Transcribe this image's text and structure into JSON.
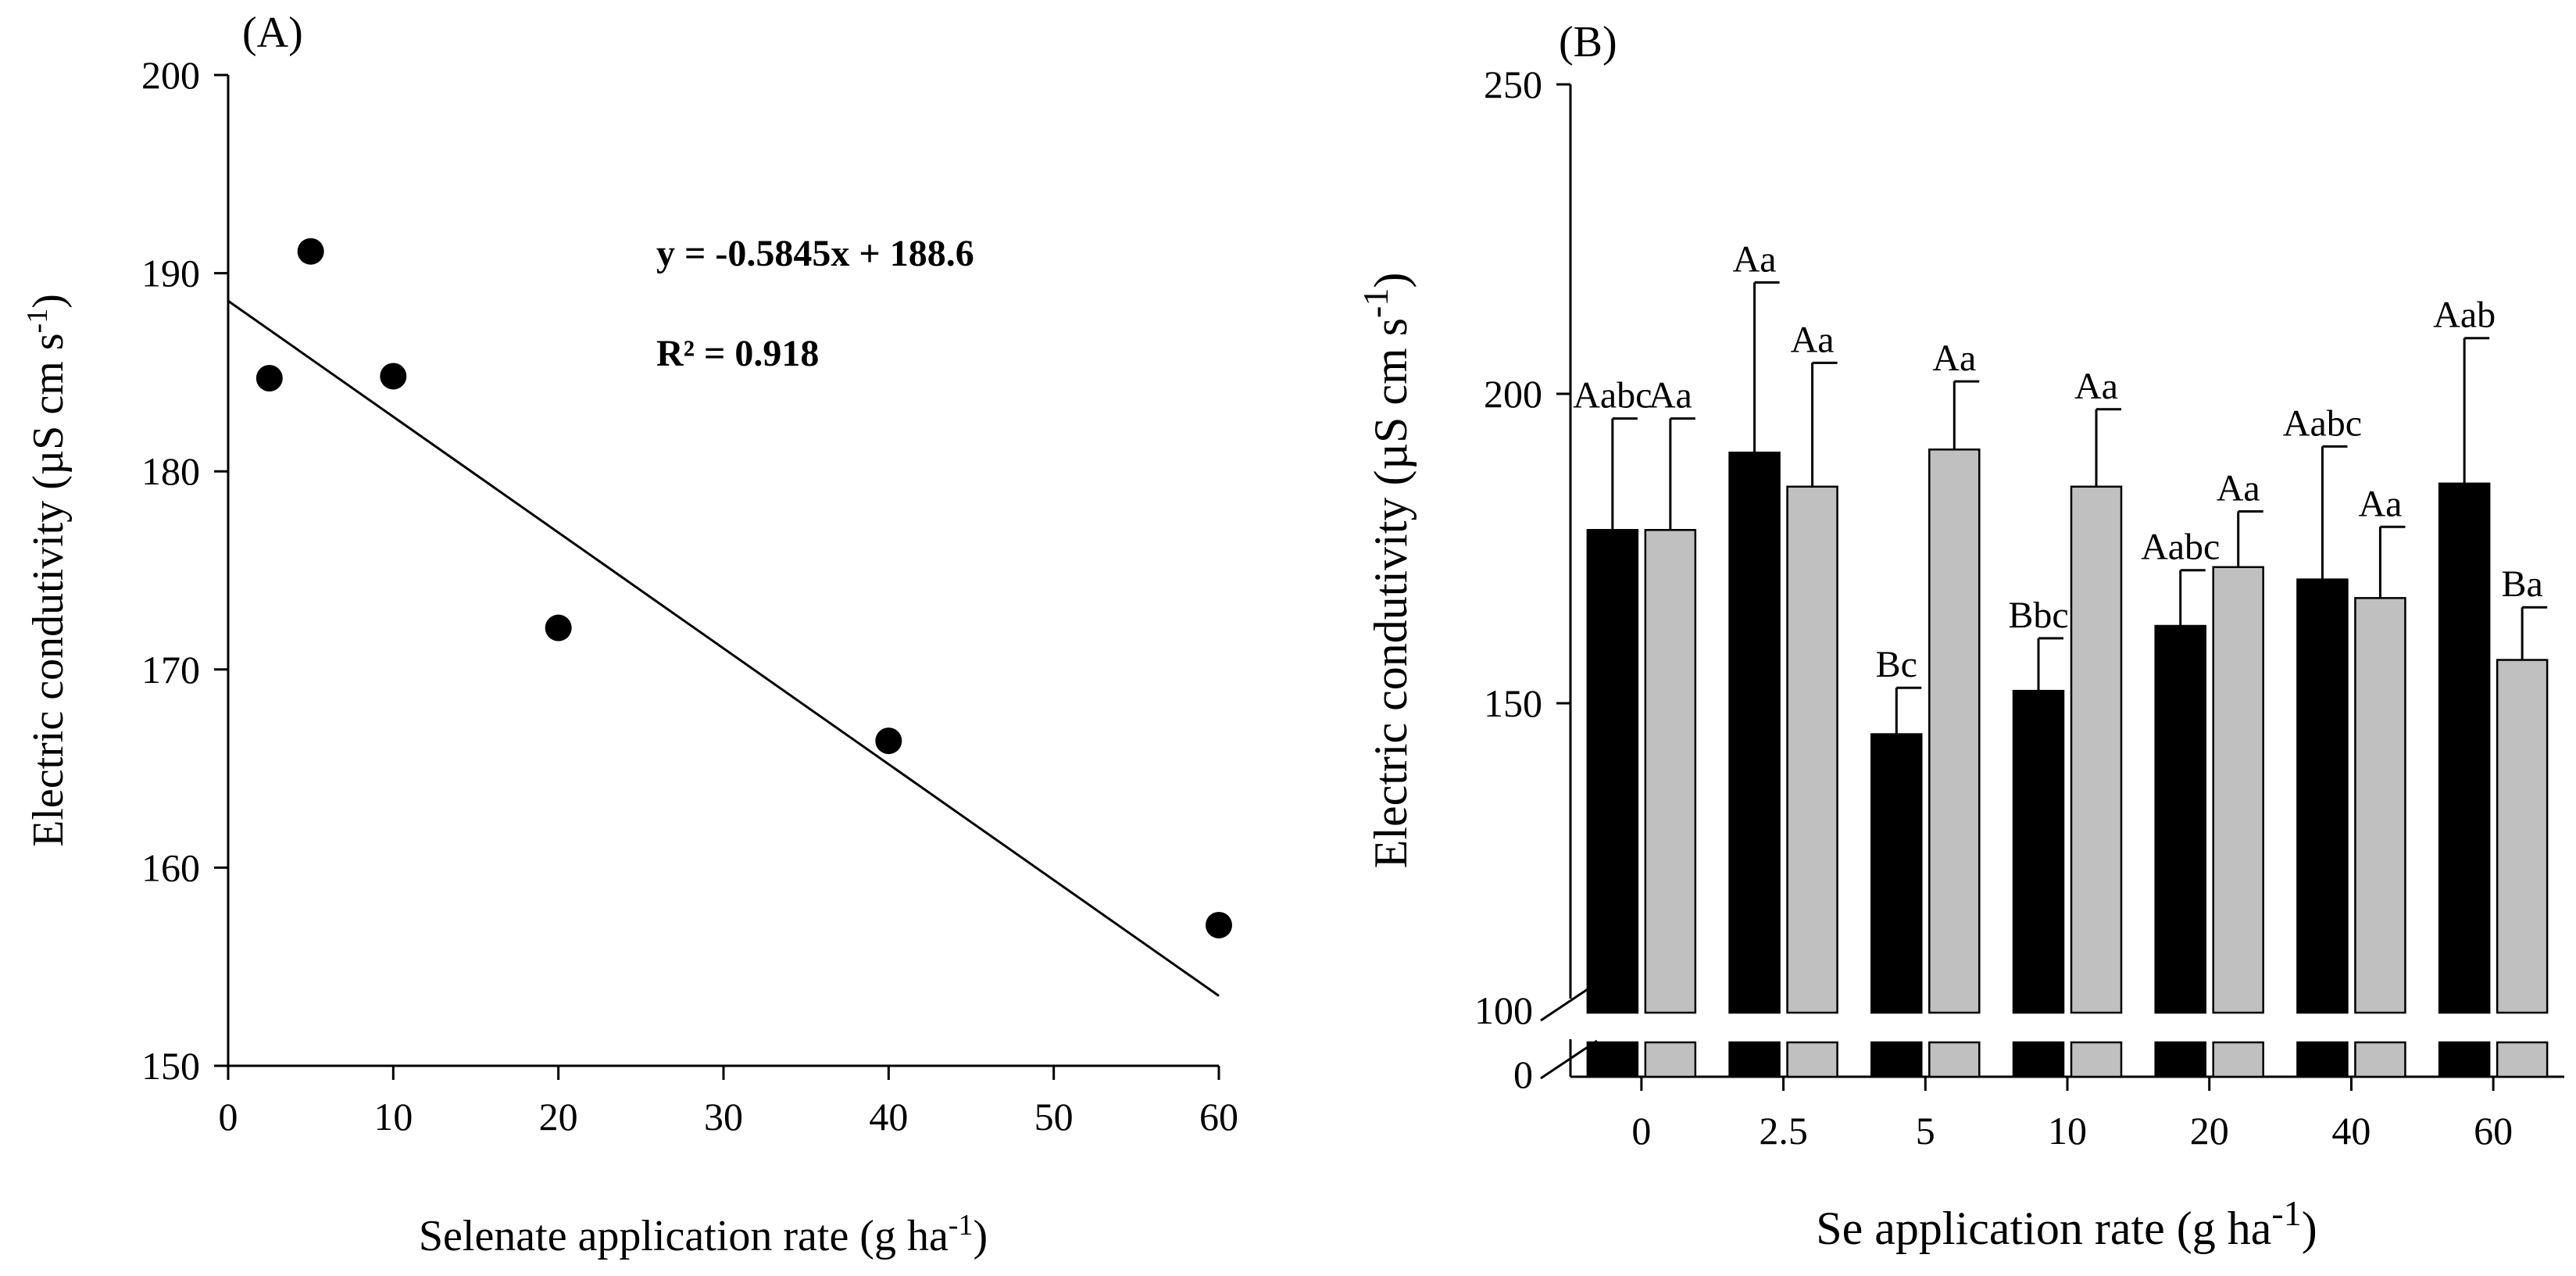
{
  "chart_data": [
    {
      "panel_label": "(A)",
      "type": "scatter",
      "title": "",
      "xlabel": "Selenate application rate (g ha",
      "xlabel_sup": "-1",
      "xlabel_tail": ")",
      "ylabel": "Electric condutivity (µS cm s",
      "ylabel_sup": "-1",
      "ylabel_tail": ")",
      "xlim": [
        0,
        60
      ],
      "ylim": [
        150,
        200
      ],
      "x_ticks": [
        0,
        10,
        20,
        30,
        40,
        50,
        60
      ],
      "y_ticks": [
        150,
        160,
        170,
        180,
        190,
        200
      ],
      "x_tick_labels": [
        "0",
        "10",
        "20",
        "30",
        "40",
        "50",
        "60"
      ],
      "y_tick_labels": [
        "150",
        "160",
        "170",
        "180",
        "190",
        "200"
      ],
      "points": [
        {
          "x": 2.5,
          "y": 184.7
        },
        {
          "x": 5,
          "y": 191.1
        },
        {
          "x": 10,
          "y": 184.8
        },
        {
          "x": 20,
          "y": 172.1
        },
        {
          "x": 40,
          "y": 166.4
        },
        {
          "x": 60,
          "y": 157.1
        }
      ],
      "fit": {
        "slope": -0.5845,
        "intercept": 188.6,
        "x_range": [
          0,
          60
        ]
      },
      "equation_text": "y = -0.5845x + 188.6",
      "r2_text": "R² = 0.918",
      "grid": false,
      "legend": "none"
    },
    {
      "panel_label": "(B)",
      "type": "bar",
      "title": "",
      "xlabel": "Se application rate (g ha",
      "xlabel_sup": "-1",
      "xlabel_tail": ")",
      "ylabel": "Electric condutivity (µS cm s",
      "ylabel_sup": "-1",
      "ylabel_tail": ")",
      "categories": [
        "0",
        "2.5",
        "5",
        "10",
        "20",
        "40",
        "60"
      ],
      "ylim": [
        100,
        250
      ],
      "axis_break": {
        "lower_label": "0",
        "break_label": "100"
      },
      "y_ticks": [
        100,
        150,
        200,
        250
      ],
      "y_tick_labels": [
        "100",
        "150",
        "200",
        "250"
      ],
      "series": [
        {
          "name": "black",
          "color": "#000000",
          "values": [
            178,
            190.5,
            145,
            152,
            162.5,
            170,
            185.5
          ],
          "errors": [
            18,
            27.5,
            7.5,
            8.5,
            9,
            21.5,
            23.5
          ],
          "labels": [
            "Aabc",
            "Aa",
            "Bc",
            "Bbc",
            "Aabc",
            "Aabc",
            "Aab"
          ]
        },
        {
          "name": "gray",
          "color": "#c0c0c0",
          "values": [
            178,
            185,
            191,
            185,
            172,
            167,
            157
          ],
          "errors": [
            18,
            20,
            11,
            12.5,
            9,
            11.5,
            8.5
          ],
          "labels": [
            "Aa",
            "Aa",
            "Aa",
            "Aa",
            "Aa",
            "Aa",
            "Ba"
          ]
        }
      ],
      "grid": false,
      "legend": "none"
    }
  ]
}
